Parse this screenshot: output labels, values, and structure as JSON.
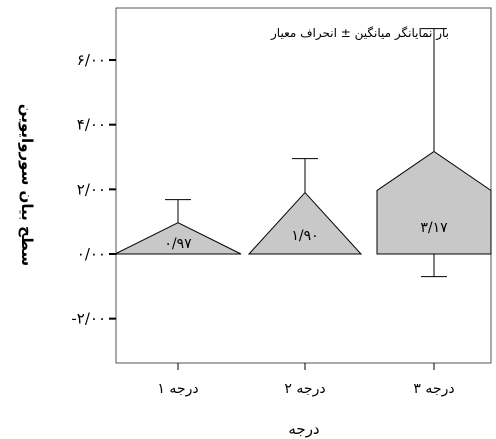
{
  "chart_data": {
    "type": "bar",
    "bar_shape": "triangle-topped (pentagon)",
    "title": "",
    "legend_text": "بار نمایانگر میانگین ± انحراف معیار",
    "xlabel": "درجه",
    "ylabel": "سطح بیان سوروایوین",
    "categories": [
      "درجه ۱",
      "درجه ۲",
      "درجه ۳"
    ],
    "values": [
      0.97,
      1.9,
      3.17
    ],
    "value_labels": [
      "۰/۹۷",
      "۱/۹۰",
      "۳/۱۷"
    ],
    "error_plus": [
      0.71,
      1.05,
      3.8
    ],
    "error_minus": [
      0.0,
      0.0,
      0.7
    ],
    "yticks": [
      -2,
      0,
      2,
      4,
      6
    ],
    "ytick_labels": [
      "-۲/۰۰",
      "۰/۰۰",
      "۲/۰۰",
      "۴/۰۰",
      "۶/۰۰"
    ],
    "ylim": [
      -3.3,
      7.4
    ],
    "grid": false,
    "fill_color": "#c8c8c8",
    "line_color": "#000000"
  }
}
